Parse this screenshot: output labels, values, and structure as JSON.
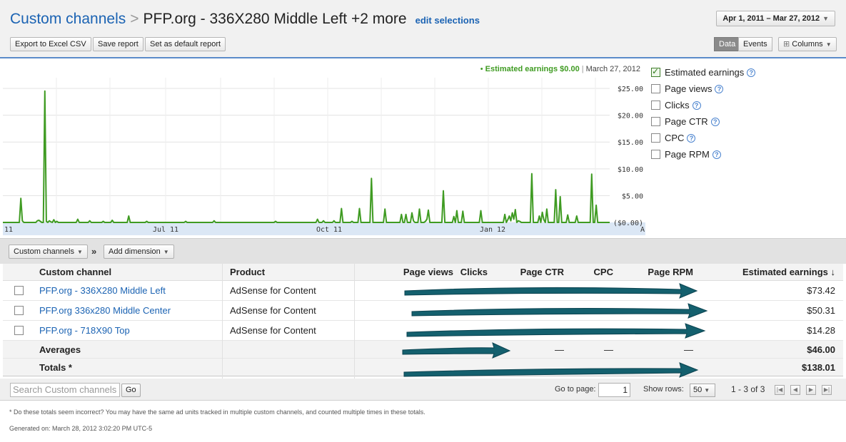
{
  "header": {
    "breadcrumb": "Custom channels",
    "separator": ">",
    "current": "PFP.org - 336X280 Middle Left +2 more",
    "edit_link": "edit selections",
    "date_range": "Apr 1, 2011 – Mar 27, 2012"
  },
  "toolbar": {
    "export": "Export to Excel CSV",
    "save": "Save report",
    "default": "Set as default report",
    "data_tab": "Data",
    "events_tab": "Events",
    "columns": "Columns"
  },
  "chart_legend": {
    "dot": "•",
    "metric": "Estimated earnings $0.00",
    "pipe": "|",
    "date": "March 27, 2012"
  },
  "chart_data": {
    "type": "line",
    "series": [
      {
        "name": "Estimated earnings",
        "color": "#3f9b22",
        "values": [
          0,
          0,
          0,
          0,
          0,
          0,
          0,
          0,
          0,
          0,
          0,
          0,
          4.5,
          0.3,
          0,
          0,
          0,
          0,
          0,
          0,
          0,
          0,
          0,
          0.3,
          0.4,
          0.2,
          0,
          0,
          24.5,
          0.2,
          0,
          0.3,
          0.1,
          0,
          0.5,
          0,
          0.2,
          0,
          0,
          0,
          0,
          0,
          0,
          0,
          0,
          0,
          0,
          0,
          0,
          0,
          0.6,
          0,
          0,
          0,
          0,
          0,
          0,
          0,
          0.3,
          0,
          0,
          0,
          0,
          0,
          0,
          0,
          0,
          0.2,
          0,
          0,
          0,
          0,
          0,
          0.4,
          0,
          0,
          0,
          0,
          0,
          0,
          0,
          0,
          0,
          0,
          1.2,
          0,
          0,
          0,
          0,
          0,
          0,
          0,
          0,
          0,
          0,
          0,
          0.2,
          0,
          0,
          0,
          0,
          0,
          0,
          0,
          0,
          0,
          0,
          0,
          0,
          0,
          0,
          0,
          0,
          0,
          0,
          0,
          0,
          0,
          0,
          0,
          0,
          0,
          0.2,
          0,
          0,
          0,
          0,
          0,
          0,
          0,
          0,
          0,
          0,
          0,
          0,
          0,
          0,
          0,
          0,
          0,
          0,
          0.3,
          0,
          0,
          0,
          0,
          0,
          0,
          0,
          0,
          0,
          0,
          0,
          0,
          0,
          0,
          0,
          0,
          0,
          0,
          0,
          0,
          0,
          0,
          0,
          0,
          0,
          0,
          0,
          0,
          0,
          0,
          0,
          0,
          0,
          0,
          0,
          0,
          0,
          0,
          0,
          0,
          0.2,
          0,
          0,
          0,
          0,
          0,
          0,
          0,
          0,
          0,
          0,
          0,
          0,
          0,
          0,
          0,
          0,
          0,
          0,
          0,
          0,
          0,
          0,
          0,
          0,
          0,
          0,
          0,
          0.6,
          0,
          0,
          0,
          0.3,
          0,
          0,
          0,
          0,
          0,
          0,
          0.3,
          0,
          0,
          0,
          0,
          2.6,
          0,
          0,
          0,
          0,
          0,
          0,
          0.2,
          0,
          0,
          0,
          0,
          2.6,
          0,
          0,
          0,
          0,
          0,
          0,
          0,
          8.2,
          0,
          0,
          0,
          0,
          0,
          0,
          0,
          0,
          2.5,
          0,
          0,
          0,
          0,
          0,
          0,
          0,
          0,
          0,
          0,
          1.5,
          0,
          0,
          1.5,
          0,
          0,
          0,
          1.8,
          0.3,
          0,
          0,
          0,
          2.5,
          0,
          0,
          0,
          0.2,
          0.6,
          2.3,
          0,
          0,
          0,
          0,
          0,
          0,
          0,
          0,
          0,
          5.9,
          0,
          0,
          0,
          0,
          0,
          0,
          1.1,
          0,
          2.2,
          0,
          0,
          0,
          2.1,
          0,
          0,
          0,
          0,
          0,
          0,
          0,
          0,
          0,
          0,
          0,
          2.2,
          0,
          0,
          0,
          0,
          0,
          0,
          0,
          0,
          0,
          0,
          0,
          0,
          0,
          0,
          0,
          1.5,
          0,
          0.5,
          1.2,
          0.3,
          1.8,
          0.6,
          2.4,
          0,
          0.3,
          0.2,
          0,
          0,
          0,
          0,
          0,
          0,
          0,
          9.1,
          0,
          0,
          0,
          0,
          1.2,
          0,
          1.9,
          0.5,
          0,
          2.5,
          0,
          0,
          0,
          0,
          0,
          6.1,
          0,
          0,
          4.8,
          0,
          0,
          0,
          0,
          1.4,
          0,
          0,
          0,
          0,
          0,
          1.2,
          0,
          0,
          0,
          0,
          0,
          0,
          0,
          0,
          0,
          9.0,
          0,
          0,
          3.2,
          0,
          0,
          0,
          0,
          0,
          0,
          0,
          0,
          0
        ]
      }
    ],
    "x_ticks": [
      "11",
      "Jul 11",
      "Oct 11",
      "Jan 12",
      "A"
    ],
    "y_ticks": [
      "$25.00",
      "$20.00",
      "$15.00",
      "$10.00",
      "$5.00",
      "($0.00)"
    ],
    "ylim": [
      0,
      27
    ]
  },
  "metrics": [
    {
      "label": "Estimated earnings",
      "checked": true
    },
    {
      "label": "Page views",
      "checked": false
    },
    {
      "label": "Clicks",
      "checked": false
    },
    {
      "label": "Page CTR",
      "checked": false
    },
    {
      "label": "CPC",
      "checked": false
    },
    {
      "label": "Page RPM",
      "checked": false
    }
  ],
  "help_glyph": "?",
  "dimensions": {
    "custom_channels": "Custom channels",
    "arrow": "»",
    "add_dimension": "Add dimension"
  },
  "table": {
    "headers": {
      "channel": "Custom channel",
      "product": "Product",
      "page_views": "Page views",
      "clicks": "Clicks",
      "ctr": "Page CTR",
      "cpc": "CPC",
      "rpm": "Page RPM",
      "earnings": "Estimated earnings ↓"
    },
    "rows": [
      {
        "channel": "PFP.org - 336X280 Middle Left",
        "product": "AdSense for Content",
        "earnings": "$73.42"
      },
      {
        "channel": "PFP.org 336x280 Middle Center",
        "product": "AdSense for Content",
        "earnings": "$50.31"
      },
      {
        "channel": "PFP.org - 718X90 Top",
        "product": "AdSense for Content",
        "earnings": "$14.28"
      }
    ],
    "averages": {
      "label": "Averages",
      "ctr": "—",
      "cpc": "—",
      "rpm": "—",
      "earnings": "$46.00"
    },
    "totals": {
      "label": "Totals *",
      "earnings": "$138.01"
    }
  },
  "pager": {
    "search_placeholder": "Search Custom channels",
    "go": "Go",
    "go_to_page": "Go to page:",
    "page": "1",
    "show_rows": "Show rows:",
    "rows_value": "50",
    "range": "1 - 3 of 3",
    "first": "|◀",
    "prev": "◀",
    "next": "▶",
    "last": "▶|"
  },
  "footnote": "* Do these totals seem incorrect? You may have the same ad units tracked in multiple custom channels, and counted multiple times in these totals.",
  "generated": "Generated on: March 28, 2012 3:02:20 PM UTC-5"
}
